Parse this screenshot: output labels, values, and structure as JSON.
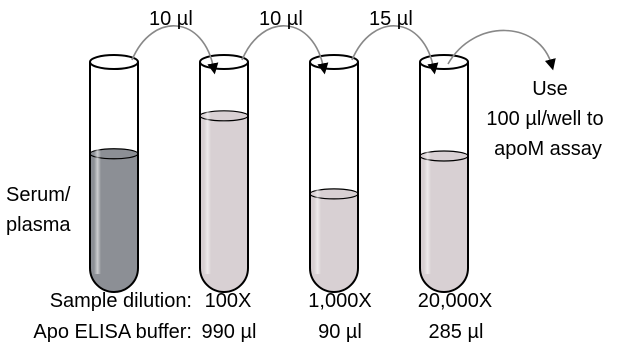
{
  "transfers": [
    {
      "volume": "10 µl"
    },
    {
      "volume": "10 µl"
    },
    {
      "volume": "15 µl"
    }
  ],
  "final_step": {
    "line1": "Use",
    "line2": "100 µl/well to",
    "line3": "apoM assay"
  },
  "serum_label": {
    "line1": "Serum/",
    "line2": "plasma"
  },
  "rows": {
    "dilution_label": "Sample dilution:",
    "buffer_label": "Apo ELISA buffer:",
    "dilutions": [
      "100X",
      "1,000X",
      "20,000X"
    ],
    "buffers": [
      "990 µl",
      "90 µl",
      "285 µl"
    ]
  },
  "tubes": [
    {
      "id": "serum",
      "fill_level": 0.62,
      "color": "#8c8f95"
    },
    {
      "id": "tube-100x",
      "fill_level": 0.79,
      "color": "#d8d0d3"
    },
    {
      "id": "tube-1000x",
      "fill_level": 0.44,
      "color": "#d8d0d3"
    },
    {
      "id": "tube-20000x",
      "fill_level": 0.61,
      "color": "#d8d0d3"
    }
  ]
}
